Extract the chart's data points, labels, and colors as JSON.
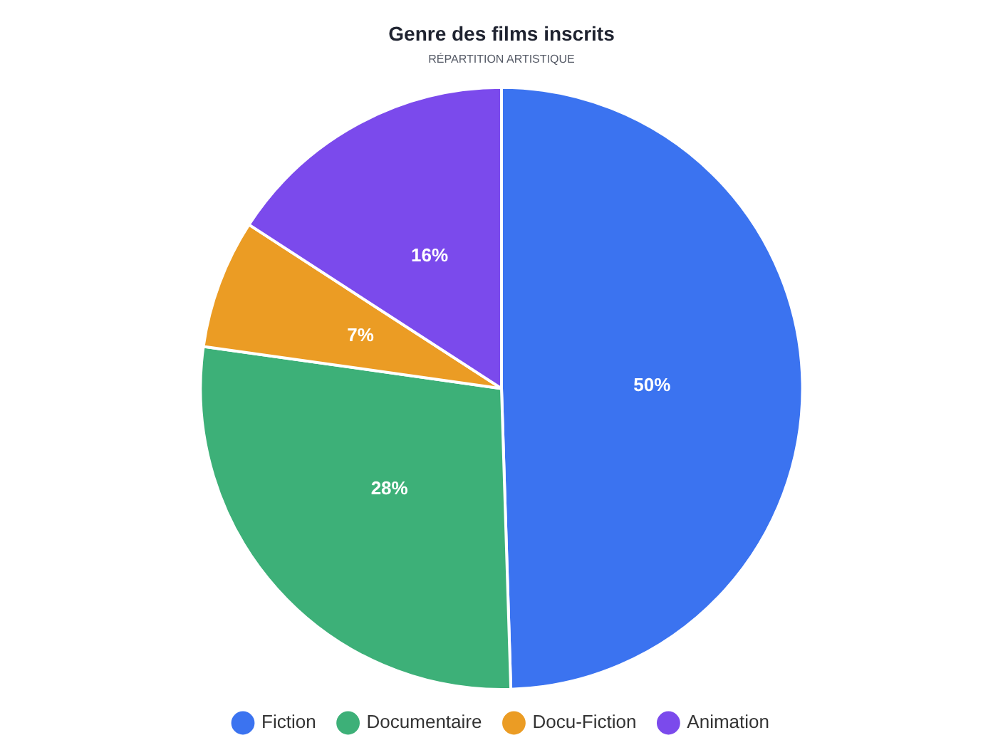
{
  "chart_data": {
    "type": "pie",
    "title": "Genre des films inscrits",
    "subtitle": "RÉPARTITION ARTISTIQUE",
    "categories": [
      "Fiction",
      "Documentaire",
      "Docu-Fiction",
      "Animation"
    ],
    "values": [
      50,
      28,
      7,
      16
    ],
    "value_labels": [
      "50%",
      "28%",
      "7%",
      "16%"
    ],
    "colors": [
      "#3b73f0",
      "#3db078",
      "#eb9c24",
      "#7b4aec"
    ],
    "legend": "bottom"
  }
}
